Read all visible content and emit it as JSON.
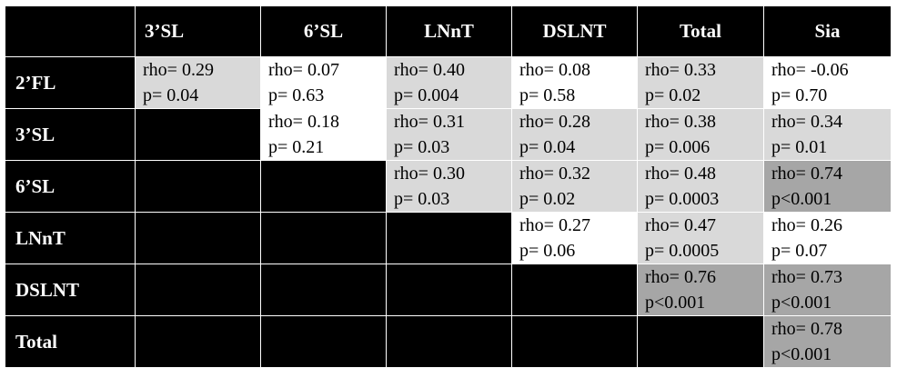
{
  "table": {
    "columns": [
      "3’SL",
      "6’SL",
      "LNnT",
      "DSLNT",
      "Total",
      "Sia"
    ],
    "rows": [
      {
        "label": "2’FL",
        "cells": [
          {
            "rho": "rho= 0.29",
            "p": "p= 0.04",
            "shade": "light"
          },
          {
            "rho": "rho= 0.07",
            "p": "p= 0.63",
            "shade": "white"
          },
          {
            "rho": "rho= 0.40",
            "p": "p= 0.004",
            "shade": "light"
          },
          {
            "rho": "rho= 0.08",
            "p": "p= 0.58",
            "shade": "white"
          },
          {
            "rho": "rho= 0.33",
            "p": "p= 0.02",
            "shade": "light"
          },
          {
            "rho": "rho= -0.06",
            "p": "p= 0.70",
            "shade": "white"
          }
        ]
      },
      {
        "label": "3’SL",
        "cells": [
          null,
          {
            "rho": "rho= 0.18",
            "p": "p= 0.21",
            "shade": "white"
          },
          {
            "rho": "rho= 0.31",
            "p": "p= 0.03",
            "shade": "light"
          },
          {
            "rho": "rho= 0.28",
            "p": "p= 0.04",
            "shade": "light"
          },
          {
            "rho": "rho= 0.38",
            "p": "p= 0.006",
            "shade": "light"
          },
          {
            "rho": "rho= 0.34",
            "p": "p= 0.01",
            "shade": "light"
          }
        ]
      },
      {
        "label": "6’SL",
        "cells": [
          null,
          null,
          {
            "rho": "rho= 0.30",
            "p": "p= 0.03",
            "shade": "light"
          },
          {
            "rho": "rho= 0.32",
            "p": "p= 0.02",
            "shade": "light"
          },
          {
            "rho": "rho= 0.48",
            "p": "p= 0.0003",
            "shade": "light"
          },
          {
            "rho": "rho= 0.74",
            "p": "p<0.001",
            "shade": "dark"
          }
        ]
      },
      {
        "label": "LNnT",
        "cells": [
          null,
          null,
          null,
          {
            "rho": "rho= 0.27",
            "p": "p= 0.06",
            "shade": "white"
          },
          {
            "rho": "rho= 0.47",
            "p": "p= 0.0005",
            "shade": "light"
          },
          {
            "rho": "rho= 0.26",
            "p": "p= 0.07",
            "shade": "white"
          }
        ]
      },
      {
        "label": "DSLNT",
        "cells": [
          null,
          null,
          null,
          null,
          {
            "rho": "rho= 0.76",
            "p": "p<0.001",
            "shade": "dark"
          },
          {
            "rho": "rho= 0.73",
            "p": "p<0.001",
            "shade": "dark"
          }
        ]
      },
      {
        "label": "Total",
        "cells": [
          null,
          null,
          null,
          null,
          null,
          {
            "rho": "rho= 0.78",
            "p": "p<0.001",
            "shade": "dark"
          }
        ]
      }
    ]
  },
  "colors": {
    "header_bg": "#000000",
    "header_text": "#ffffff",
    "white": "#ffffff",
    "light": "#d9d9d9",
    "dark": "#a6a6a6"
  }
}
